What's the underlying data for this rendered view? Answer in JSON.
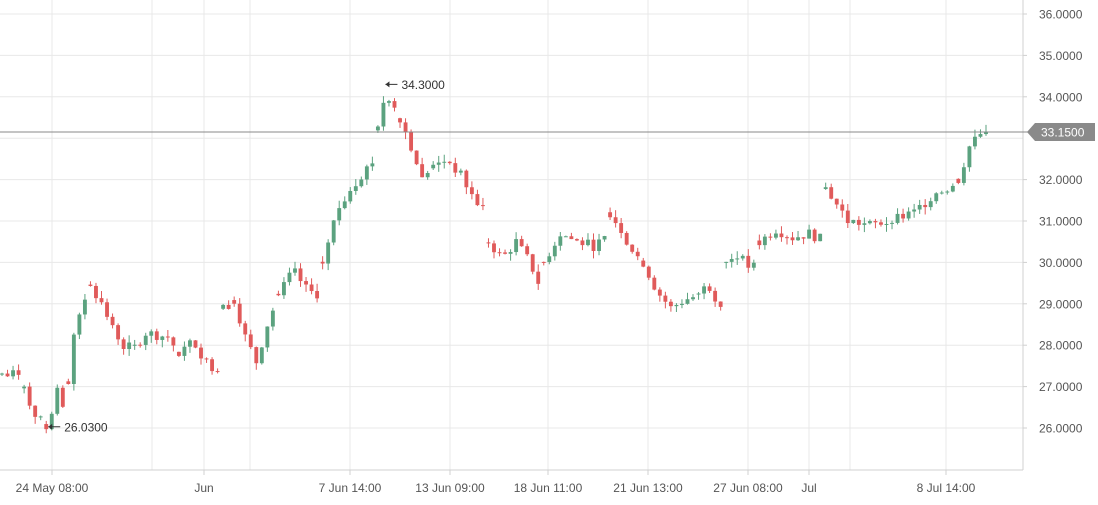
{
  "chart_data": {
    "type": "candlestick",
    "title": "",
    "xlabel": "",
    "ylabel": "",
    "ylim": [
      25.0,
      36.25
    ],
    "y_ticks": [
      "36.0000",
      "35.0000",
      "34.0000",
      "33.0000",
      "32.0000",
      "31.0000",
      "30.0000",
      "29.0000",
      "28.0000",
      "27.0000",
      "26.0000"
    ],
    "x_ticks": [
      "24 May 08:00",
      "Jun",
      "7 Jun 14:00",
      "13 Jun 09:00",
      "18 Jun 11:00",
      "21 Jun 13:00",
      "27 Jun 08:00",
      "Jul",
      "8 Jul 14:00"
    ],
    "grid": true,
    "last_price": 33.15,
    "last_price_label": "33.1500",
    "annotations": [
      {
        "label": "34.3000",
        "value": 34.3,
        "type": "max"
      },
      {
        "label": "26.0300",
        "value": 26.03,
        "type": "min"
      }
    ],
    "colors": {
      "up": "#5ba27f",
      "down": "#e05a5a",
      "grid": "#e8e8e8",
      "axis": "#d0d0d0",
      "text": "#555555",
      "price_line": "#888888",
      "badge": "#8a8a8a"
    },
    "segments": [
      {
        "n": 4,
        "v": [
          27.3,
          27.25,
          27.35,
          27.3
        ]
      },
      {
        "n": 4,
        "v": [
          27.0,
          26.5,
          26.2,
          26.05
        ]
      },
      {
        "n": 4,
        "v": [
          26.05,
          26.3,
          26.85,
          26.5,
          26.5
        ]
      },
      {
        "n": 4,
        "v": [
          27.1,
          28.5,
          29.0,
          29.5
        ]
      },
      {
        "n": 8,
        "v": [
          29.5,
          29.0,
          28.4,
          28.0,
          27.95
        ]
      },
      {
        "n": 8,
        "v": [
          27.95,
          28.3,
          28.25,
          28.2,
          27.8
        ]
      },
      {
        "n": 8,
        "v": [
          27.8,
          28.1,
          27.5,
          27.45
        ]
      },
      {
        "n": 2,
        "v": [
          28.9,
          29.1
        ]
      },
      {
        "n": 8,
        "v": [
          29.1,
          28.2,
          27.6,
          28.5,
          29.2
        ]
      },
      {
        "n": 8,
        "v": [
          29.2,
          29.8,
          29.3,
          29.2
        ]
      },
      {
        "n": 10,
        "v": [
          30.0,
          31.2,
          31.8,
          32.2,
          32.6
        ]
      },
      {
        "n": 4,
        "v": [
          33.2,
          34.1,
          33.9,
          33.5
        ]
      },
      {
        "n": 6,
        "v": [
          33.5,
          32.8,
          32.0,
          32.3
        ]
      },
      {
        "n": 10,
        "v": [
          32.3,
          32.5,
          32.1,
          31.5,
          31.2
        ]
      },
      {
        "n": 10,
        "v": [
          30.5,
          30.1,
          30.5,
          30.0,
          29.2
        ]
      },
      {
        "n": 12,
        "v": [
          30.0,
          30.7,
          30.5,
          30.4,
          30.6
        ]
      },
      {
        "n": 6,
        "v": [
          31.2,
          30.8,
          30.3,
          30.0
        ]
      },
      {
        "n": 10,
        "v": [
          30.0,
          29.3,
          28.9,
          29.1,
          29.2
        ]
      },
      {
        "n": 5,
        "v": [
          29.2,
          29.6,
          29.3,
          29.0,
          28.85
        ]
      },
      {
        "n": 6,
        "v": [
          30.0,
          30.2,
          29.9,
          29.9
        ]
      },
      {
        "n": 12,
        "v": [
          30.5,
          30.8,
          30.6,
          30.7,
          30.5
        ]
      },
      {
        "n": 12,
        "v": [
          31.8,
          31.0,
          30.9,
          31.0
        ]
      },
      {
        "n": 12,
        "v": [
          31.0,
          31.2,
          31.7,
          31.9
        ]
      },
      {
        "n": 6,
        "v": [
          32.0,
          32.8,
          33.1,
          33.15
        ]
      }
    ]
  }
}
